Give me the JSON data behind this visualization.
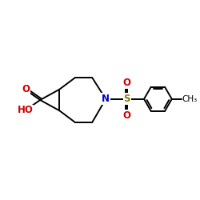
{
  "background_color": "#ffffff",
  "bond_color": "#000000",
  "N_color": "#0000cc",
  "O_color": "#cc0000",
  "S_color": "#808000",
  "figsize": [
    2.5,
    2.5
  ],
  "dpi": 100,
  "xlim": [
    0,
    10
  ],
  "ylim": [
    0,
    10
  ],
  "lw": 1.4
}
